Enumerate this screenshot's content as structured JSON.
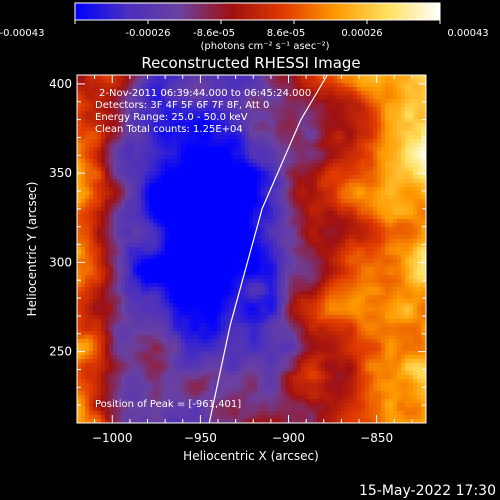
{
  "chart_data": {
    "type": "heatmap",
    "title": "Reconstructed RHESSI Image",
    "xlabel": "Heliocentric X (arcsec)",
    "ylabel": "Heliocentric Y (arcsec)",
    "x_ticks": [
      -1000,
      -950,
      -900,
      -850
    ],
    "y_ticks": [
      250,
      300,
      350,
      400
    ],
    "xlim": [
      -1020,
      -822
    ],
    "ylim": [
      210,
      405
    ],
    "colorbar": {
      "tick_labels": [
        "-0.00043",
        "-0.00026",
        "-8.6e-05",
        "8.6e-05",
        "0.00026",
        "0.00043"
      ],
      "range": [
        -0.00043,
        0.00043
      ],
      "units_label": "(photons cm⁻² s⁻¹ asec⁻²)",
      "colormap": [
        "#0000ff",
        "#4a2fbf",
        "#6a40a0",
        "#a01010",
        "#e03a00",
        "#ff9a00",
        "#ffe060",
        "#ffffff"
      ]
    },
    "annotations": {
      "time_range": "2-Nov-2011 06:39:44.000 to 06:45:24.000",
      "detectors": "Detectors: 3F 4F 5F 6F 7F 8F, Att 0",
      "energy_range": "Energy Range: 25.0 - 50.0 keV",
      "clean_counts": "Clean     Total counts: 1.25E+04",
      "peak": "Position of Peak = [-961,401]"
    },
    "limb_line": [
      [
        -945,
        210
      ],
      [
        -933,
        265
      ],
      [
        -915,
        330
      ],
      [
        -893,
        380
      ],
      [
        -878,
        405
      ]
    ]
  },
  "footer": {
    "date": "15-May-2022 17:30"
  }
}
